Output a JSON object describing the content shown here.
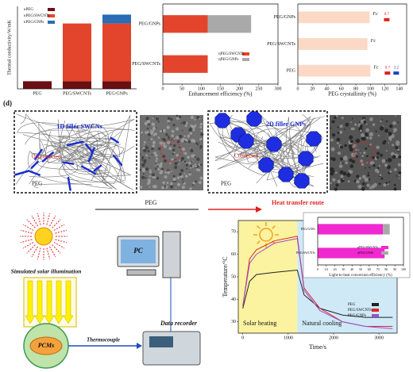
{
  "chart_data": [
    {
      "type": "bar",
      "ylabel": "Thermal conductivity/W/mK",
      "categories": [
        "PEG",
        "PEG/SWCNTs",
        "PEG/GNPs"
      ],
      "series": [
        {
          "name": "κPEG",
          "color": "#6b0f12",
          "values": [
            0.24,
            0.24,
            0.24
          ]
        },
        {
          "name": "κPEG/SWCNTs",
          "color": "#e2452c",
          "values": [
            0,
            1.82,
            1.82
          ]
        },
        {
          "name": "κPEG/GNPs",
          "color": "#2a6db5",
          "values": [
            0,
            0,
            0.28
          ]
        }
      ],
      "ylim": [
        0,
        2.6
      ]
    },
    {
      "type": "barh",
      "xlabel": "Enhancement efficiency (%)",
      "categories": [
        "PEG/GNPs",
        "PEG/SWCNTs"
      ],
      "series": [
        {
          "name": "ηPEG/SWCNTs",
          "color": "#e2452c",
          "values": [
            117,
            117
          ]
        },
        {
          "name": "ηPEG/GNPs",
          "color": "#a9a9a9",
          "values": [
            113,
            0
          ]
        }
      ],
      "xlim": [
        0,
        300
      ],
      "xticks": [
        0,
        50,
        100,
        150,
        200,
        250,
        300
      ]
    },
    {
      "type": "barh",
      "xlabel": "PEG crystallinity (%)",
      "categories": [
        "PEG/GNPs",
        "PEG/SWCNTs",
        "PEG"
      ],
      "series": [
        {
          "color": "#fbd9c6",
          "values": [
            99,
            96,
            100
          ]
        }
      ],
      "annotations": [
        "Fc",
        "Fc",
        "Fc"
      ],
      "extras": [
        {
          "category": 0,
          "value": 0.7,
          "color": "#e02020"
        },
        {
          "category": 2,
          "value": 0.7,
          "color": "#e02020"
        },
        {
          "category": 2,
          "value": 3.2,
          "color": "#2040c0"
        }
      ],
      "xlim": [
        0,
        150
      ],
      "xticks": [
        0,
        20,
        40,
        60,
        80,
        100,
        120,
        140
      ]
    },
    {
      "type": "line",
      "xlabel": "Time/s",
      "ylabel": "Temperature/°C",
      "x": [
        0,
        150,
        300,
        700,
        1200,
        1350,
        1700,
        2200,
        2700,
        3300
      ],
      "series": [
        {
          "name": "PEG",
          "color": "#222222",
          "values": [
            36,
            48,
            51,
            52,
            53,
            42,
            36,
            33,
            32,
            32
          ]
        },
        {
          "name": "PEG/SWCNTs",
          "color": "#e02828",
          "values": [
            37,
            58,
            62,
            66,
            68,
            45,
            36,
            30,
            28,
            28
          ]
        },
        {
          "name": "PEG/GNPs",
          "color": "#9b4fd0",
          "values": [
            37,
            56,
            60,
            65,
            67,
            44,
            35,
            30,
            28,
            27
          ]
        }
      ],
      "regions": [
        {
          "label": "Solar heating",
          "x": [
            -100,
            1200
          ],
          "color": "#fbf3a0"
        },
        {
          "label": "Natural cooling",
          "x": [
            1200,
            3400
          ],
          "color": "#cfe9f7"
        }
      ],
      "xlim": [
        -100,
        3400
      ],
      "xticks": [
        0,
        1000,
        2000,
        3000
      ],
      "ylim": [
        25,
        75
      ],
      "yticks": [
        30,
        40,
        50,
        60,
        70
      ]
    },
    {
      "type": "barh",
      "xlabel": "Light-to-heat conversion efficiency (%)",
      "categories": [
        "PEG/GNPs",
        "PEG/SWCNTs"
      ],
      "series": [
        {
          "name": "ηPEG/SWCNTs",
          "color": "#f028d0",
          "values": [
            76,
            78
          ]
        },
        {
          "name": "ηPEG/GNPs",
          "color": "#a9a9a9",
          "values": [
            8,
            0
          ]
        }
      ],
      "xlim": [
        0,
        100
      ],
      "xticks": [
        0,
        10,
        20,
        30,
        40,
        50,
        60,
        70,
        80,
        90,
        100
      ]
    }
  ],
  "panel_label": "(d)",
  "diagram": {
    "left_box": {
      "filler": "1D filler SWCNs",
      "state": "Unconnected",
      "matrix": "PEG"
    },
    "right_box": {
      "filler": "2D filler GNPs",
      "state": "Connected",
      "matrix": "PEG"
    },
    "route_left": "PEG",
    "route_right": "Heat transfer route"
  },
  "setup": {
    "light": "Simulated solar illumination",
    "sample": "PCMs",
    "sensor": "Thermocouple",
    "recorder": "Data recorder",
    "computer": "PC"
  }
}
